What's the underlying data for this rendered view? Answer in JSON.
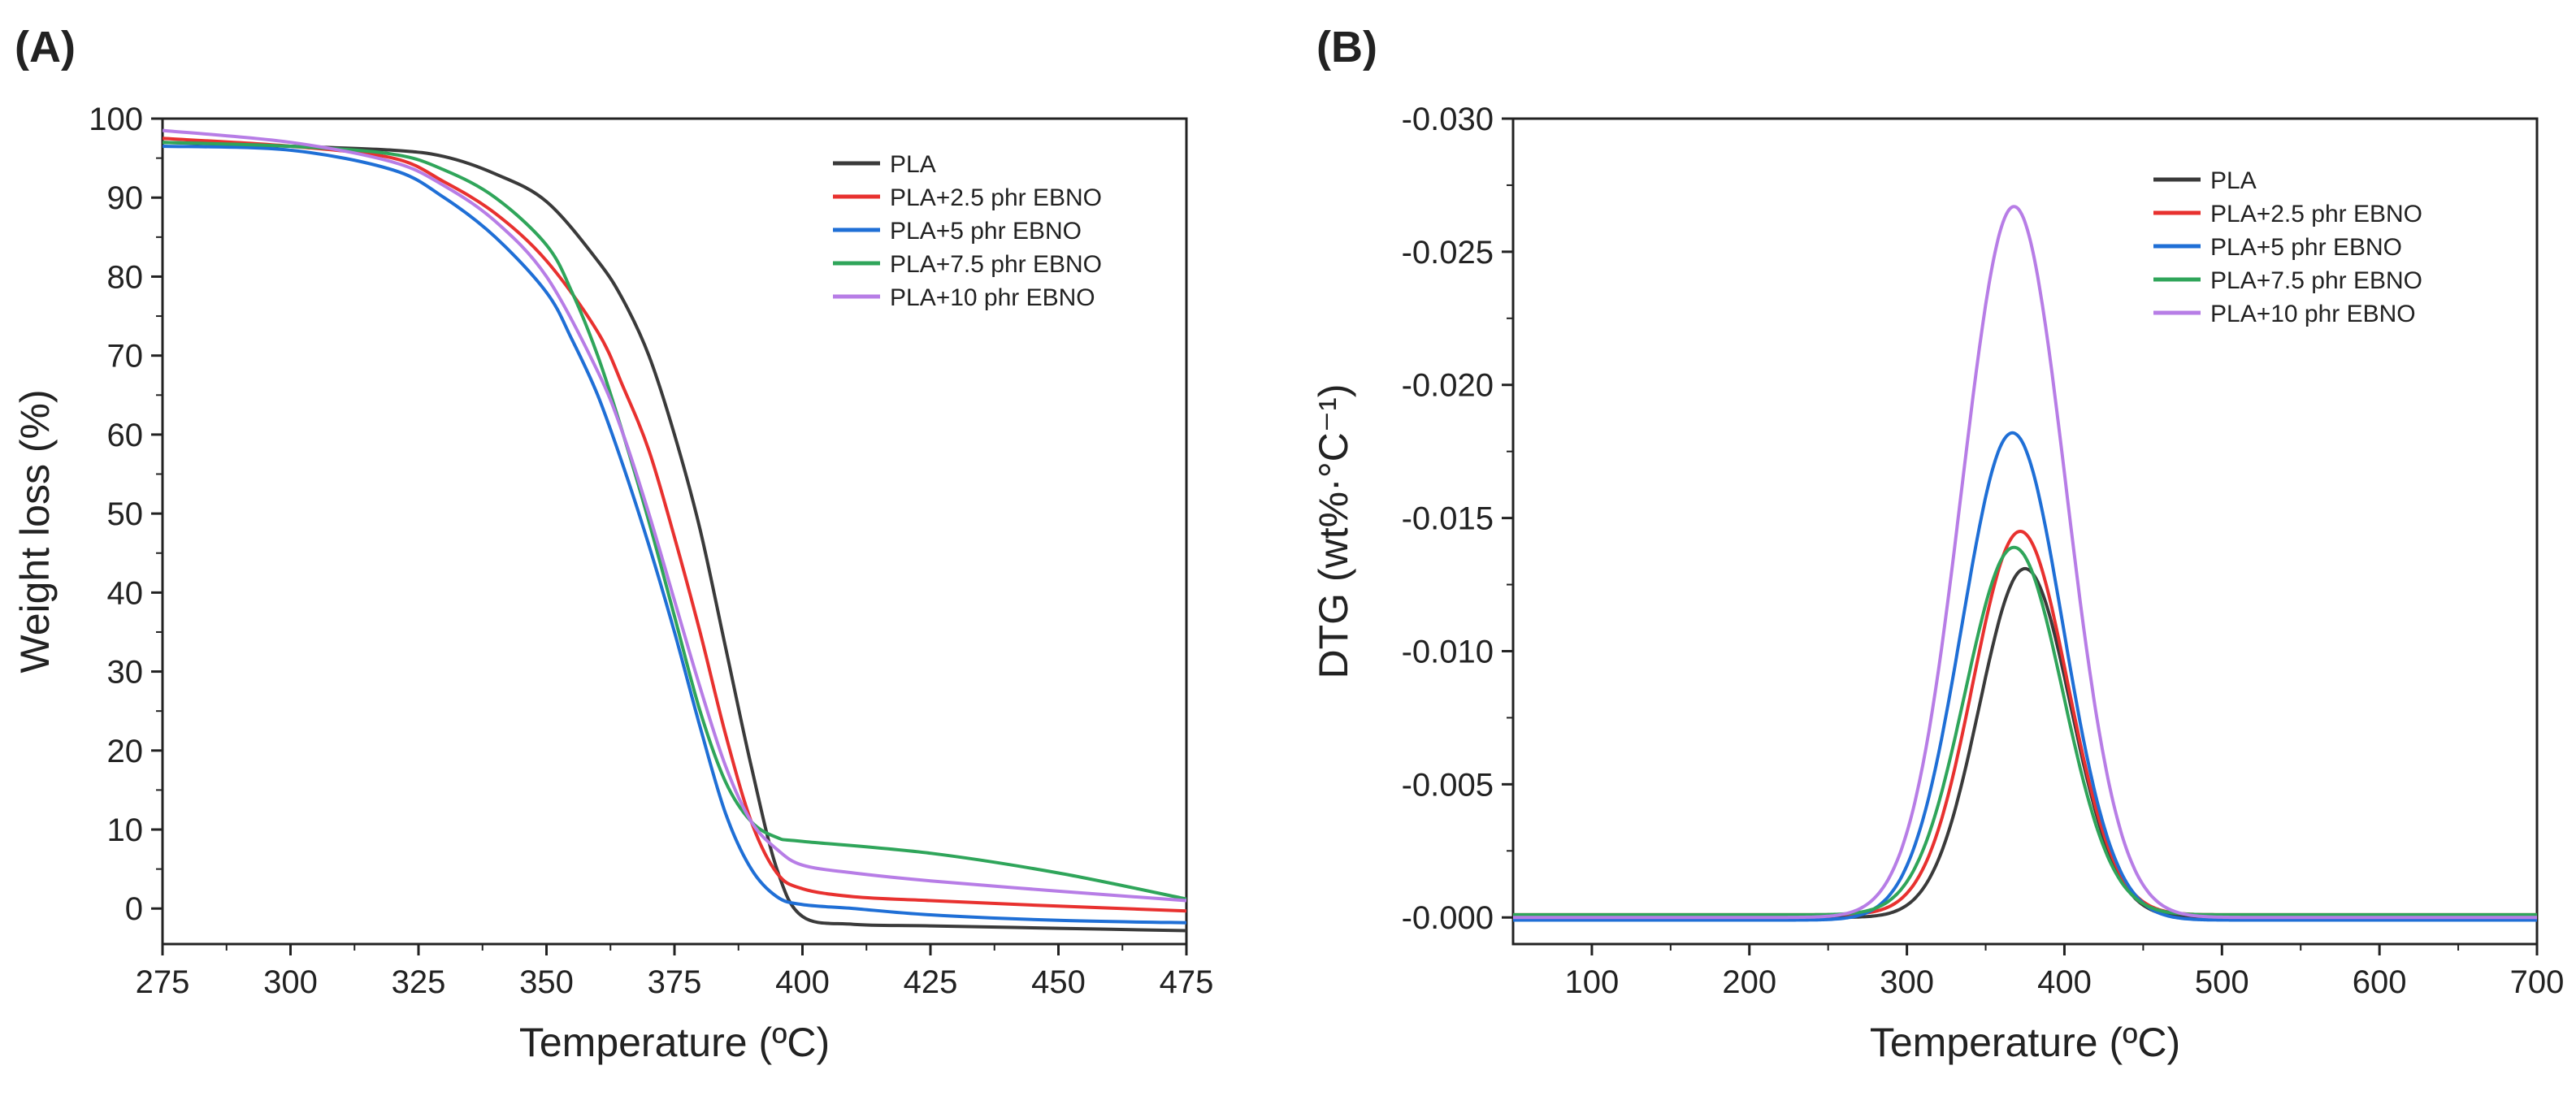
{
  "figure": {
    "panels": [
      "(A)",
      "(B)"
    ]
  },
  "chart_data": [
    {
      "type": "line",
      "panel": "(A)",
      "title": "",
      "xlabel": "Temperature (ºC)",
      "ylabel": "Weight loss (%)",
      "xlim": [
        275,
        475
      ],
      "ylim": [
        -4.5,
        100
      ],
      "xticks": [
        275,
        300,
        325,
        350,
        375,
        400,
        425,
        450,
        475
      ],
      "yticks": [
        0,
        10,
        20,
        30,
        40,
        50,
        60,
        70,
        80,
        90,
        100
      ],
      "legend_position": "top-right",
      "series": [
        {
          "name": "PLA",
          "color": "#3a3a3a",
          "x": [
            275,
            300,
            320,
            330,
            340,
            350,
            360,
            365,
            370,
            375,
            380,
            385,
            390,
            395,
            400,
            410,
            425,
            450,
            475
          ],
          "y": [
            97,
            96.5,
            96,
            95.2,
            93,
            89.5,
            82,
            77,
            70,
            60,
            48,
            33,
            18,
            5,
            -1,
            -2,
            -2.2,
            -2.5,
            -2.8
          ]
        },
        {
          "name": "PLA+2.5 phr EBNO",
          "color": "#e8312f",
          "x": [
            275,
            300,
            320,
            330,
            340,
            350,
            360,
            365,
            370,
            375,
            380,
            385,
            390,
            395,
            400,
            410,
            425,
            450,
            475
          ],
          "y": [
            97.5,
            96.5,
            95,
            92,
            88,
            82,
            73,
            66,
            58,
            47,
            35,
            22,
            11,
            4.5,
            2.5,
            1.5,
            1,
            0.3,
            -0.3
          ]
        },
        {
          "name": "PLA+5 phr EBNO",
          "color": "#1f6fd6",
          "x": [
            275,
            300,
            320,
            330,
            340,
            350,
            355,
            360,
            365,
            370,
            375,
            380,
            385,
            390,
            395,
            400,
            410,
            425,
            450,
            475
          ],
          "y": [
            96.5,
            96,
            93.5,
            90,
            85,
            78,
            72,
            65,
            56,
            46,
            35,
            23,
            12,
            5,
            1.5,
            0.5,
            0,
            -0.8,
            -1.5,
            -1.8
          ]
        },
        {
          "name": "PLA+7.5 phr EBNO",
          "color": "#2fa55a",
          "x": [
            275,
            300,
            320,
            330,
            340,
            350,
            355,
            360,
            365,
            370,
            375,
            380,
            385,
            390,
            395,
            400,
            425,
            450,
            475
          ],
          "y": [
            97,
            96.5,
            95.5,
            93.5,
            90,
            84,
            78,
            70,
            60,
            49,
            37,
            25,
            16,
            11,
            9,
            8.5,
            7,
            4.5,
            1.2
          ]
        },
        {
          "name": "PLA+10 phr EBNO",
          "color": "#b77de6",
          "x": [
            275,
            300,
            320,
            330,
            340,
            350,
            360,
            365,
            370,
            375,
            380,
            385,
            390,
            395,
            400,
            410,
            425,
            450,
            475
          ],
          "y": [
            98.5,
            97,
            94.5,
            91.5,
            87,
            80,
            68,
            60,
            50,
            39,
            28,
            18,
            11,
            7.5,
            5.5,
            4.5,
            3.5,
            2.2,
            1
          ]
        }
      ]
    },
    {
      "type": "line",
      "panel": "(B)",
      "title": "",
      "xlabel": "Temperature (ºC)",
      "ylabel": "DTG (wt%·°C⁻¹)",
      "xlim": [
        50,
        700
      ],
      "ylim": [
        0.001,
        -0.03
      ],
      "xticks": [
        100,
        200,
        300,
        400,
        500,
        600,
        700
      ],
      "yticks": [
        "-0.000",
        "-0.005",
        "-0.010",
        "-0.015",
        "-0.020",
        "-0.025",
        "-0.030"
      ],
      "legend_position": "top-right",
      "series": [
        {
          "name": "PLA",
          "color": "#3a3a3a",
          "peak_x": 375,
          "peak_y": -0.0131,
          "sigma": 29,
          "base": 0.0
        },
        {
          "name": "PLA+2.5 phr EBNO",
          "color": "#e8312f",
          "peak_x": 372,
          "peak_y": -0.0144,
          "sigma": 30,
          "base": -0.0001
        },
        {
          "name": "PLA+5 phr EBNO",
          "color": "#1f6fd6",
          "peak_x": 367,
          "peak_y": -0.0183,
          "sigma": 32,
          "base": 0.0001
        },
        {
          "name": "PLA+7.5 phr EBNO",
          "color": "#2fa55a",
          "peak_x": 368,
          "peak_y": -0.0138,
          "sigma": 31,
          "base": -0.0001
        },
        {
          "name": "PLA+10 phr EBNO",
          "color": "#b77de6",
          "peak_x": 368,
          "peak_y": -0.0267,
          "sigma": 33,
          "base": 0.0
        }
      ]
    }
  ]
}
